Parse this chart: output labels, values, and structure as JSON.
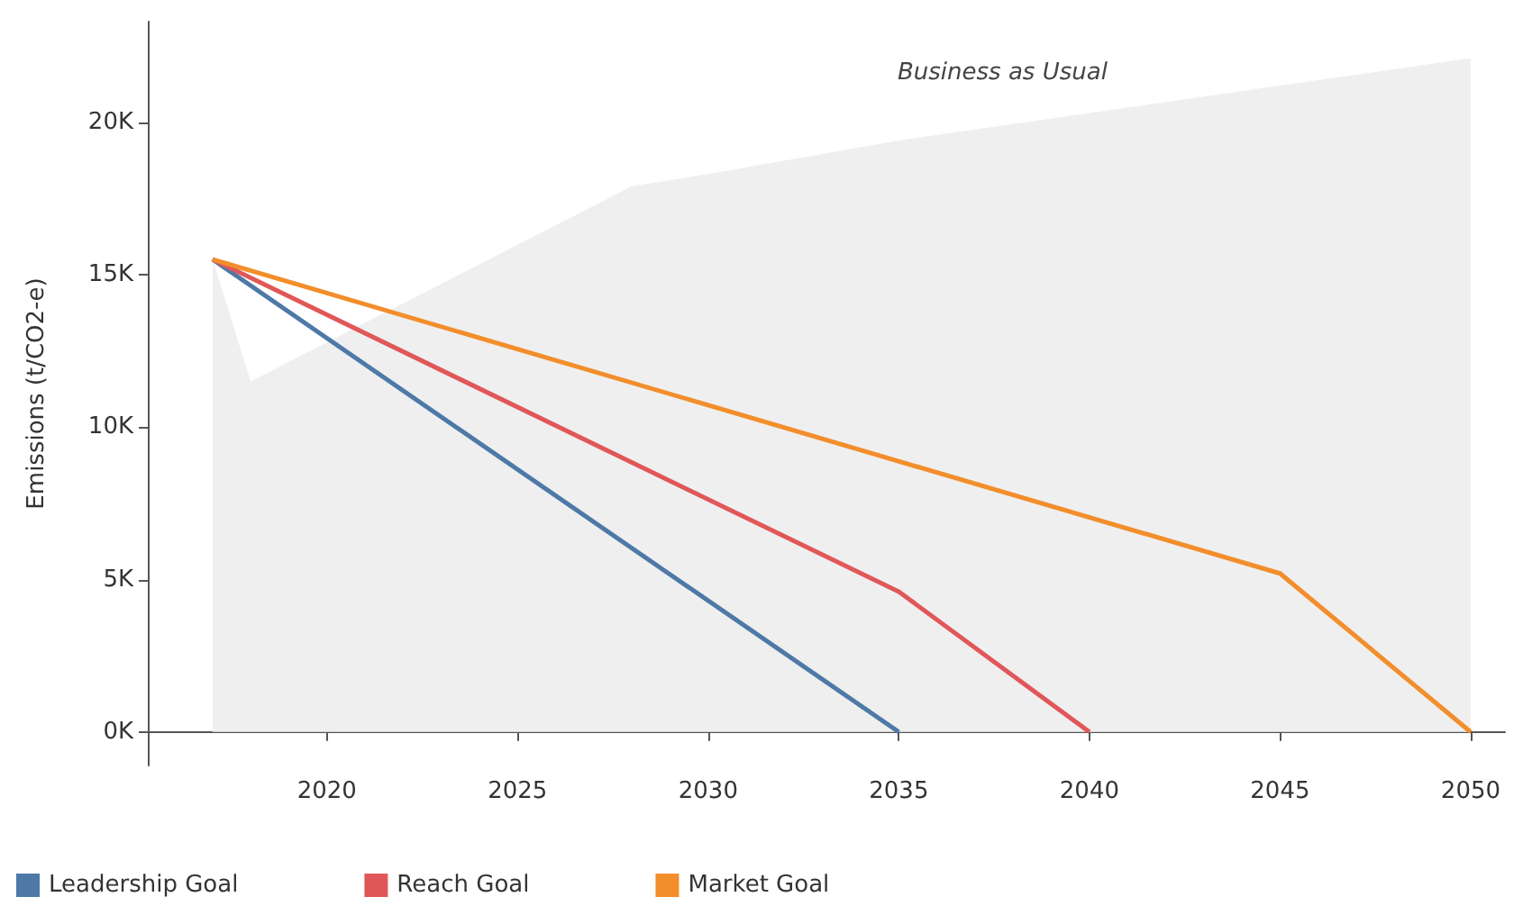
{
  "chart_data": {
    "type": "line",
    "ylabel": "Emissions (t/CO2-e)",
    "xlim": [
      2015.3,
      2050.9
    ],
    "xticks": [
      2020,
      2025,
      2030,
      2035,
      2040,
      2045,
      2050
    ],
    "ylim": [
      -1100,
      23300
    ],
    "yticks": [
      {
        "value": 0,
        "label": "0K"
      },
      {
        "value": 5000,
        "label": "5K"
      },
      {
        "value": 10000,
        "label": "10K"
      },
      {
        "value": 15000,
        "label": "15K"
      },
      {
        "value": 20000,
        "label": "20K"
      }
    ],
    "series": [
      {
        "type": "area",
        "color": "#efefef",
        "x": [
          2017,
          2017,
          2018,
          2028,
          2030,
          2035,
          2040,
          2045,
          2050
        ],
        "values": [
          0,
          15500,
          11500,
          17900,
          18300,
          19400,
          20300,
          21200,
          22100
        ]
      },
      {
        "name": "Leadership Goal",
        "color": "#4e79a7",
        "x": [
          2017,
          2035
        ],
        "values": [
          15500,
          0
        ]
      },
      {
        "name": "Reach Goal",
        "color": "#e15759",
        "x": [
          2017,
          2035,
          2040
        ],
        "values": [
          15500,
          4600,
          0
        ]
      },
      {
        "name": "Market Goal",
        "color": "#f28e2b",
        "x": [
          2017,
          2045,
          2050
        ],
        "values": [
          15500,
          5200,
          0
        ]
      }
    ],
    "annotations": [
      "Business as Usual"
    ],
    "grid": false,
    "legend": "bottom left",
    "marker": "none",
    "line_style": "solid"
  }
}
